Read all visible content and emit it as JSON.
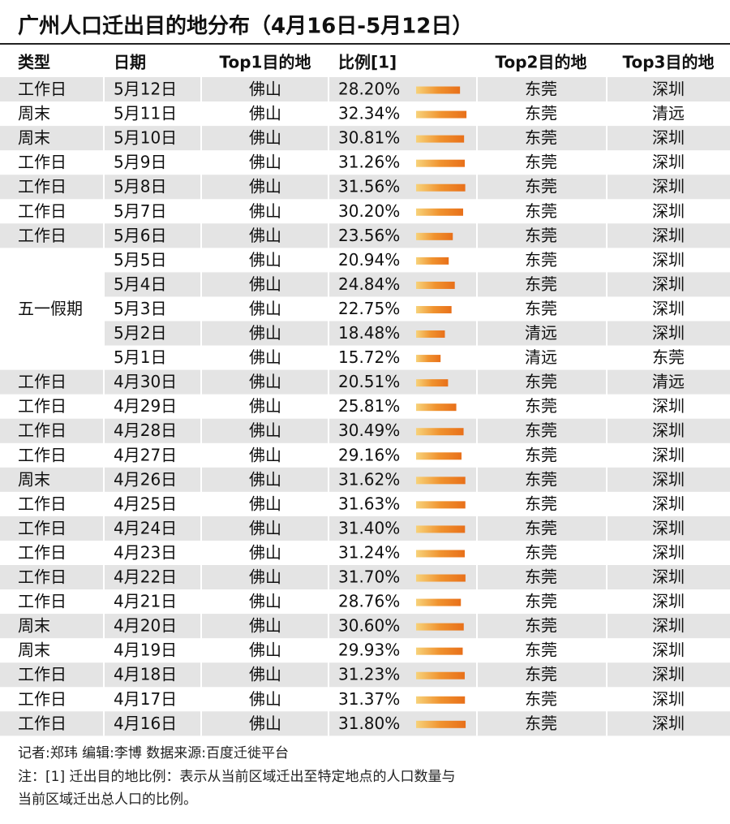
{
  "header": {
    "title": "广州人口迁出目的地分布（4月16日-5月12日）"
  },
  "table": {
    "columns": [
      "类型",
      "日期",
      "Top1目的地",
      "比例[1]",
      "Top2目的地",
      "Top3目的地"
    ],
    "rows": [
      [
        "工作日",
        "5月12日",
        "佛山",
        {
          "value": 28.2,
          "label": "28.20%"
        },
        "东莞",
        "深圳"
      ],
      [
        "周末",
        "5月11日",
        "佛山",
        {
          "value": 32.34,
          "label": "32.34%"
        },
        "东莞",
        "清远"
      ],
      [
        "周末",
        "5月10日",
        "佛山",
        {
          "value": 30.81,
          "label": "30.81%"
        },
        "东莞",
        "深圳"
      ],
      [
        "工作日",
        "5月9日",
        "佛山",
        {
          "value": 31.26,
          "label": "31.26%"
        },
        "东莞",
        "深圳"
      ],
      [
        "工作日",
        "5月8日",
        "佛山",
        {
          "value": 31.56,
          "label": "31.56%"
        },
        "东莞",
        "深圳"
      ],
      [
        "工作日",
        "5月7日",
        "佛山",
        {
          "value": 30.2,
          "label": "30.20%"
        },
        "东莞",
        "深圳"
      ],
      [
        "工作日",
        "5月6日",
        "佛山",
        {
          "value": 23.56,
          "label": "23.56%"
        },
        "东莞",
        "深圳"
      ],
      [
        "五一假期",
        "5月5日",
        "佛山",
        {
          "value": 20.94,
          "label": "20.94%"
        },
        "东莞",
        "深圳"
      ],
      [
        null,
        "5月4日",
        "佛山",
        {
          "value": 24.84,
          "label": "24.84%"
        },
        "东莞",
        "深圳"
      ],
      [
        null,
        "5月3日",
        "佛山",
        {
          "value": 22.75,
          "label": "22.75%"
        },
        "东莞",
        "深圳"
      ],
      [
        null,
        "5月2日",
        "佛山",
        {
          "value": 18.48,
          "label": "18.48%"
        },
        "清远",
        "深圳"
      ],
      [
        null,
        "5月1日",
        "佛山",
        {
          "value": 15.72,
          "label": "15.72%"
        },
        "清远",
        "东莞"
      ],
      [
        "工作日",
        "4月30日",
        "佛山",
        {
          "value": 20.51,
          "label": "20.51%"
        },
        "东莞",
        "清远"
      ],
      [
        "工作日",
        "4月29日",
        "佛山",
        {
          "value": 25.81,
          "label": "25.81%"
        },
        "东莞",
        "深圳"
      ],
      [
        "工作日",
        "4月28日",
        "佛山",
        {
          "value": 30.49,
          "label": "30.49%"
        },
        "东莞",
        "深圳"
      ],
      [
        "工作日",
        "4月27日",
        "佛山",
        {
          "value": 29.16,
          "label": "29.16%"
        },
        "东莞",
        "深圳"
      ],
      [
        "周末",
        "4月26日",
        "佛山",
        {
          "value": 31.62,
          "label": "31.62%"
        },
        "东莞",
        "深圳"
      ],
      [
        "工作日",
        "4月25日",
        "佛山",
        {
          "value": 31.63,
          "label": "31.63%"
        },
        "东莞",
        "深圳"
      ],
      [
        "工作日",
        "4月24日",
        "佛山",
        {
          "value": 31.4,
          "label": "31.40%"
        },
        "东莞",
        "深圳"
      ],
      [
        "工作日",
        "4月23日",
        "佛山",
        {
          "value": 31.24,
          "label": "31.24%"
        },
        "东莞",
        "深圳"
      ],
      [
        "工作日",
        "4月22日",
        "佛山",
        {
          "value": 31.7,
          "label": "31.70%"
        },
        "东莞",
        "深圳"
      ],
      [
        "工作日",
        "4月21日",
        "佛山",
        {
          "value": 28.76,
          "label": "28.76%"
        },
        "东莞",
        "深圳"
      ],
      [
        "周末",
        "4月20日",
        "佛山",
        {
          "value": 30.6,
          "label": "30.60%"
        },
        "东莞",
        "深圳"
      ],
      [
        "周末",
        "4月19日",
        "佛山",
        {
          "value": 29.93,
          "label": "29.93%"
        },
        "东莞",
        "深圳"
      ],
      [
        "工作日",
        "4月18日",
        "佛山",
        {
          "value": 31.23,
          "label": "31.23%"
        },
        "东莞",
        "深圳"
      ],
      [
        "工作日",
        "4月17日",
        "佛山",
        {
          "value": 31.37,
          "label": "31.37%"
        },
        "东莞",
        "深圳"
      ],
      [
        "工作日",
        "4月16日",
        "佛山",
        {
          "value": 31.8,
          "label": "31.80%"
        },
        "东莞",
        "深圳"
      ]
    ]
  },
  "footer": {
    "credits": "记者:郑玮  编辑:李博  数据来源:百度迁徙平台",
    "note": [
      "注：[1] 迁出目的地比例：表示从当前区域迁出至特定地点的人口数量与",
      "当前区域迁出总人口的比例。"
    ]
  }
}
